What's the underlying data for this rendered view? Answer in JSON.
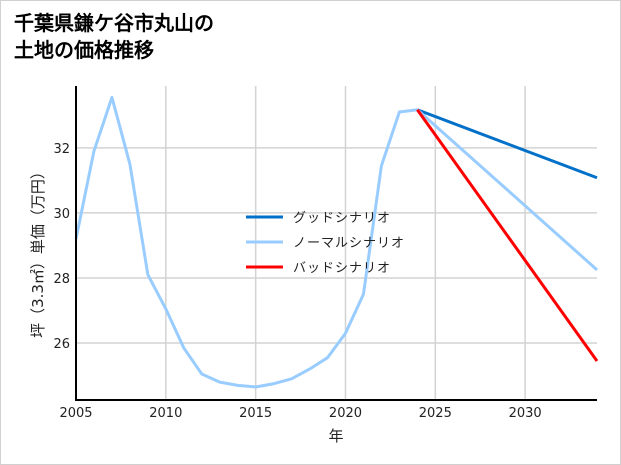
{
  "chart_data": {
    "type": "line",
    "title": [
      "千葉県鎌ケ谷市丸山の",
      "土地の価格推移"
    ],
    "xlabel": "年",
    "ylabel": "坪（3.3㎡）単価（万円）",
    "xlim": [
      2005,
      2034
    ],
    "ylim": [
      24.25,
      33.9
    ],
    "xticks": [
      2005,
      2010,
      2015,
      2020,
      2025,
      2030
    ],
    "yticks": [
      26,
      28,
      30,
      32
    ],
    "grid": true,
    "legend_position": "center",
    "historical": {
      "x": [
        2005,
        2006,
        2007,
        2008,
        2009,
        2010,
        2011,
        2012,
        2013,
        2014,
        2015,
        2016,
        2017,
        2018,
        2019,
        2020,
        2021,
        2022,
        2023,
        2024
      ],
      "y": [
        29.2,
        31.9,
        33.55,
        31.5,
        28.1,
        27.05,
        25.85,
        25.05,
        24.8,
        24.7,
        24.65,
        24.75,
        24.9,
        25.2,
        25.55,
        26.3,
        27.5,
        31.45,
        33.1,
        33.17
      ]
    },
    "series": [
      {
        "name": "グッドシナリオ",
        "color": "#0070c8",
        "x": [
          2024,
          2034
        ],
        "y": [
          33.17,
          31.08
        ]
      },
      {
        "name": "ノーマルシナリオ",
        "color": "#99ccff",
        "x": [
          2024,
          2034
        ],
        "y": [
          33.17,
          28.25
        ]
      },
      {
        "name": "バッドシナリオ",
        "color": "#ff0000",
        "x": [
          2024,
          2034
        ],
        "y": [
          33.17,
          25.45
        ]
      }
    ]
  }
}
